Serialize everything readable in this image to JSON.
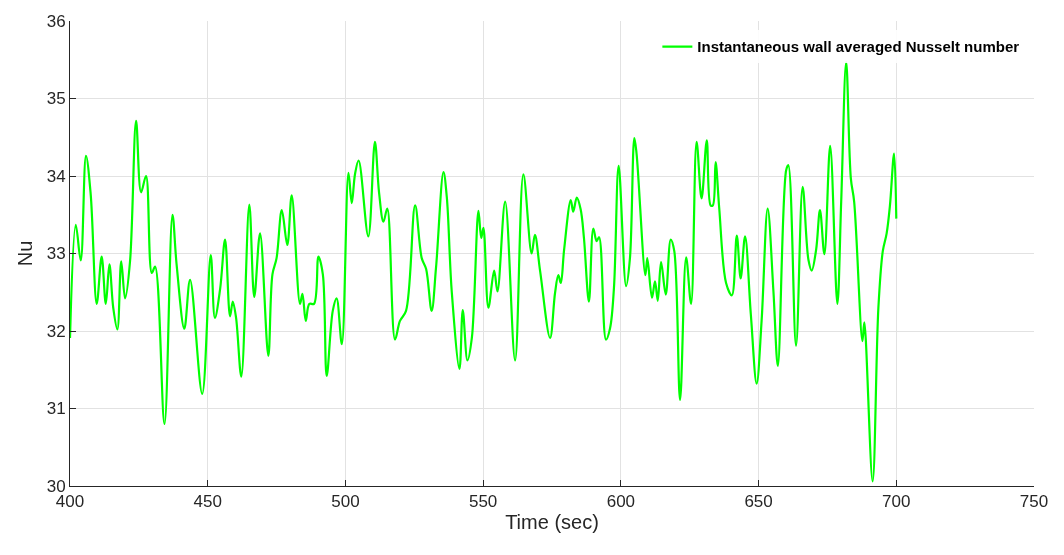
{
  "chart_data": {
    "type": "line",
    "xlabel": "Time (sec)",
    "ylabel": "Nu",
    "xlim": [
      400,
      750
    ],
    "xticks": [
      400,
      450,
      500,
      550,
      600,
      650,
      700,
      750
    ],
    "ylim": [
      30,
      36
    ],
    "yticks": [
      30,
      31,
      32,
      33,
      34,
      35,
      36
    ],
    "grid": true,
    "legend": "top right",
    "marker": "none",
    "line_style": "solid",
    "series": [
      {
        "name": "Instantaneous wall averaged Nusselt number",
        "color": "#00ff00",
        "x": [
          400,
          402.1,
          403.9,
          405.8,
          407.5,
          409.7,
          411.5,
          413,
          414.3,
          415.7,
          417.2,
          418.6,
          420,
          421.8,
          424,
          425.8,
          427.6,
          429.7,
          430.9,
          434.3,
          437.2,
          438.7,
          441.5,
          443.6,
          448.0,
          451.1,
          452.6,
          454.5,
          456.3,
          458.1,
          459.1,
          460.3,
          462.2,
          465.1,
          466.9,
          469,
          472,
          473.5,
          475,
          476.9,
          478.9,
          480.5,
          483.5,
          484.4,
          485.6,
          486.9,
          488.6,
          490.2,
          491.8,
          493.2,
          495.4,
          496.8,
          498.7,
          501.1,
          502.3,
          503.5,
          504.8,
          508.3,
          510.7,
          512.2,
          513.8,
          515.2,
          518,
          519.8,
          522,
          525.3,
          527.7,
          529.3,
          531.3,
          532.9,
          535.6,
          536.8,
          538.6,
          541.4,
          542.6,
          544.3,
          545.9,
          548.3,
          549.3,
          550.1,
          551.9,
          554,
          555.2,
          558,
          561.6,
          564.6,
          567.6,
          568.8,
          570.7,
          574.3,
          576.1,
          577.3,
          578.2,
          579.4,
          581.8,
          582.7,
          584,
          585.4,
          586.6,
          588.4,
          590,
          591.2,
          592.1,
          594.6,
          596.1,
          597.5,
          599.2,
          601.9,
          603.3,
          604.9,
          605.7,
          608.9,
          609.6,
          611.3,
          612.4,
          613.4,
          614.6,
          616.3,
          618.1,
          619.4,
          621.5,
          623.7,
          625.5,
          627.5,
          629.3,
          631.2,
          632.6,
          633.4,
          634.4,
          635.7,
          638.2,
          640.3,
          642.1,
          643.5,
          645.1,
          647.2,
          649.3,
          651.1,
          653.3,
          655.4,
          657,
          660,
          660.8,
          663.6,
          666,
          668.1,
          669.3,
          670.9,
          672.3,
          673.9,
          676,
          678.6,
          680,
          681.8,
          683.5,
          684.7,
          687.7,
          688.4,
          691.4,
          693.5,
          695.1,
          696.5,
          697.7,
          699.2,
          700
        ],
        "values": [
          31.91,
          33.37,
          32.91,
          34.26,
          33.77,
          32.35,
          32.96,
          32.35,
          32.86,
          32.3,
          32.02,
          32.9,
          32.42,
          32.9,
          34.71,
          33.79,
          34.0,
          32.75,
          32.83,
          30.8,
          33.5,
          32.86,
          32.03,
          32.66,
          31.19,
          32.98,
          32.17,
          32.54,
          33.18,
          32.19,
          32.38,
          32.17,
          31.41,
          33.63,
          32.44,
          33.26,
          31.68,
          32.73,
          32.94,
          33.56,
          33.11,
          33.75,
          32.35,
          32.48,
          32.13,
          32.35,
          32.35,
          32.96,
          32.73,
          31.42,
          32.26,
          32.42,
          31.83,
          34.04,
          33.65,
          34.03,
          34.2,
          33.22,
          34.44,
          33.79,
          33.41,
          33.58,
          31.89,
          32.13,
          32.26,
          33.62,
          32.94,
          32.8,
          32.26,
          32.82,
          34.05,
          33.73,
          32.51,
          31.51,
          32.27,
          31.62,
          31.91,
          33.55,
          33.2,
          33.33,
          32.3,
          32.78,
          32.51,
          33.67,
          31.62,
          34.02,
          33.0,
          33.24,
          32.77,
          31.91,
          32.49,
          32.72,
          32.62,
          33.05,
          33.69,
          33.54,
          33.72,
          33.57,
          33.2,
          32.38,
          33.32,
          33.16,
          33.21,
          31.89,
          32.04,
          32.56,
          34.13,
          32.58,
          32.94,
          34.49,
          34.29,
          32.72,
          32.94,
          32.43,
          32.64,
          32.39,
          32.89,
          32.47,
          33.18,
          33.03,
          31.11,
          32.95,
          32.35,
          34.44,
          33.71,
          34.46,
          33.62,
          33.62,
          34.18,
          33.59,
          32.62,
          32.46,
          33.23,
          32.68,
          33.22,
          32.21,
          31.32,
          32.13,
          33.58,
          32.51,
          31.55,
          34.07,
          34.14,
          31.81,
          33.86,
          32.92,
          32.78,
          33.05,
          33.56,
          32.99,
          34.39,
          32.35,
          33.67,
          35.47,
          33.97,
          33.67,
          31.87,
          32.11,
          30.06,
          32.3,
          33.03,
          33.26,
          33.62,
          34.29,
          33.45
        ]
      }
    ]
  }
}
